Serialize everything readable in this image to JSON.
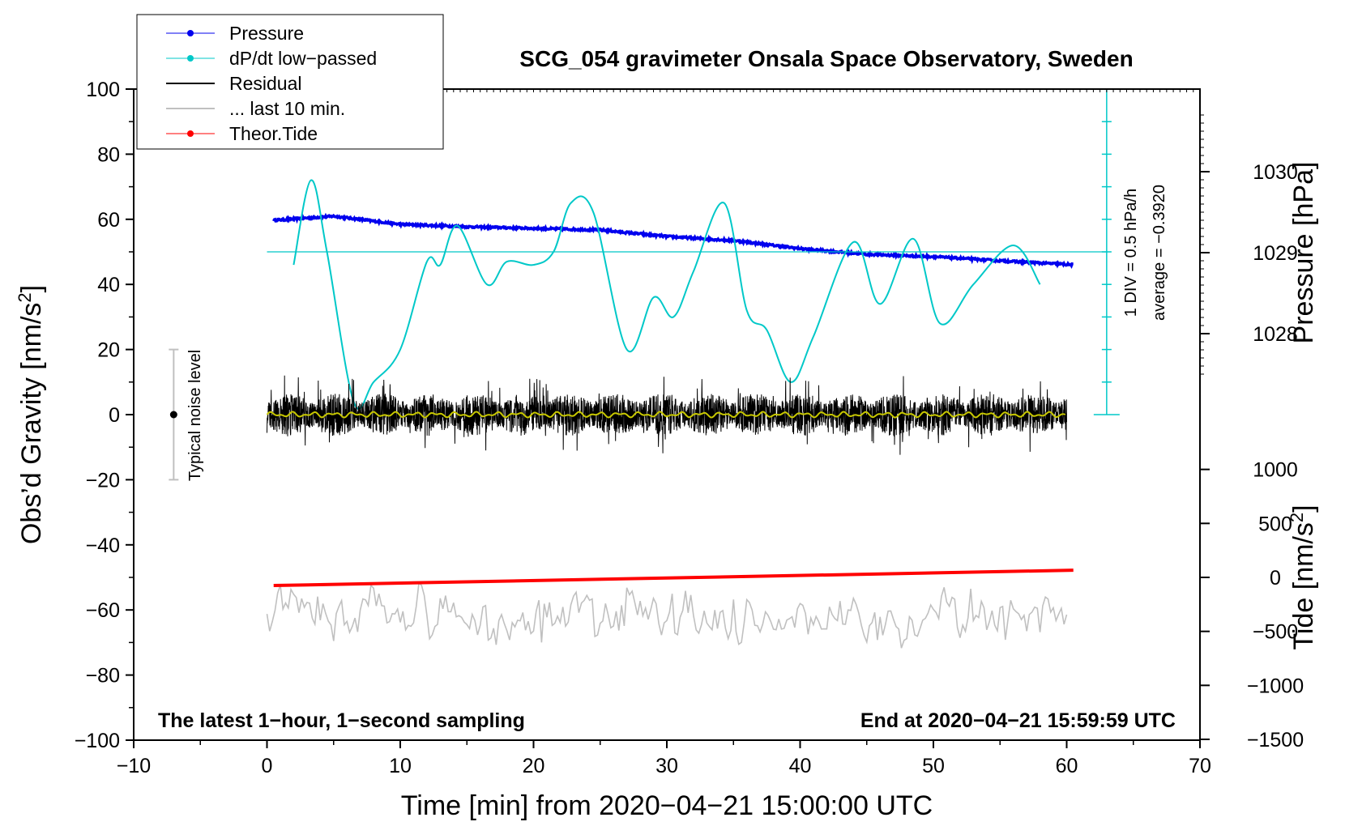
{
  "chart_data": {
    "type": "line",
    "title": "SCG_054 gravimeter Onsala Space Observatory, Sweden",
    "xlabel": "Time [min] from 2020−04−21 15:00:00 UTC",
    "ylabel_left": "Obs’d Gravity [nm/s²]",
    "ylabel_pressure": "Pressure [hPa]",
    "ylabel_tide": "Tide [nm/s²]",
    "xlim": [
      -10,
      70
    ],
    "ylim": [
      -100,
      100
    ],
    "x_ticks": [
      "−10",
      "0",
      "10",
      "20",
      "30",
      "40",
      "50",
      "60",
      "70"
    ],
    "y_ticks": [
      "100",
      "80",
      "60",
      "40",
      "20",
      "0",
      "−20",
      "−40",
      "−60",
      "−80",
      "−100"
    ],
    "pressure_ticks": [
      "1030",
      "1029",
      "1028"
    ],
    "tide_ticks": [
      "1000",
      "500",
      "0",
      "−500",
      "−1000",
      "−1500"
    ],
    "legend": [
      {
        "label": "Pressure",
        "color": "#0000ee",
        "marker": true
      },
      {
        "label": "dP/dt low−passed",
        "color": "#00c8c8",
        "marker": true
      },
      {
        "label": "Residual",
        "color": "#000000",
        "marker": false
      },
      {
        "label": "... last 10 min.",
        "color": "#c0c0c0",
        "marker": false
      },
      {
        "label": "Theor.Tide",
        "color": "#ff0000",
        "marker": true
      }
    ],
    "series": [
      {
        "name": "Pressure",
        "unit": "hPa",
        "x": [
          0.5,
          5,
          10,
          15,
          20,
          25,
          30,
          35,
          40,
          45,
          50,
          55,
          60.5
        ],
        "values": [
          1029.4,
          1029.45,
          1029.35,
          1029.32,
          1029.3,
          1029.28,
          1029.2,
          1029.15,
          1029.05,
          1028.98,
          1028.95,
          1028.9,
          1028.85
        ]
      },
      {
        "name": "dP/dt low−passed",
        "unit": "hPa/h",
        "x": [
          2,
          3.3,
          4.5,
          6.5,
          8,
          10,
          12,
          13,
          14.3,
          16.5,
          18,
          20,
          21.5,
          22.8,
          24.5,
          27,
          29,
          30.5,
          32,
          34.3,
          36,
          37.5,
          39.3,
          41,
          44,
          46,
          48.5,
          50.5,
          53,
          56,
          58
        ],
        "values": [
          -0.2,
          1.1,
          0.0,
          -2.3,
          -2.0,
          -1.5,
          -0.15,
          -0.2,
          0.4,
          -0.5,
          -0.15,
          -0.2,
          0.0,
          0.75,
          0.6,
          -1.5,
          -0.7,
          -1.0,
          -0.3,
          0.75,
          -0.9,
          -1.2,
          -2.0,
          -1.3,
          0.15,
          -0.8,
          0.2,
          -1.1,
          -0.5,
          0.1,
          -0.5
        ]
      },
      {
        "name": "Residual",
        "unit": "nm/s²",
        "x_range": [
          0,
          60
        ],
        "amplitude_range": [
          -15,
          17
        ],
        "mean": 0
      },
      {
        "name": "... last 10 min.",
        "unit": "nm/s²",
        "x_range": [
          0,
          60
        ],
        "center": -62,
        "amplitude_range": [
          -76,
          -45
        ]
      },
      {
        "name": "Theor.Tide",
        "unit": "nm/s²",
        "x": [
          0.5,
          60.5
        ],
        "values": [
          -52.5,
          -47.8
        ]
      }
    ],
    "dpdt_scale": {
      "baseline_gravity": 50,
      "nm_per_div": 10,
      "zero_line": 0
    },
    "annotations": {
      "div_label": "1 DIV = 0.5 hPa/h",
      "average_label": "average = −0.3920",
      "noise_label": "Typical noise level",
      "bottom_left": "The latest 1−hour, 1−second sampling",
      "bottom_right": "End at 2020−04−21 15:59:59 UTC"
    }
  }
}
